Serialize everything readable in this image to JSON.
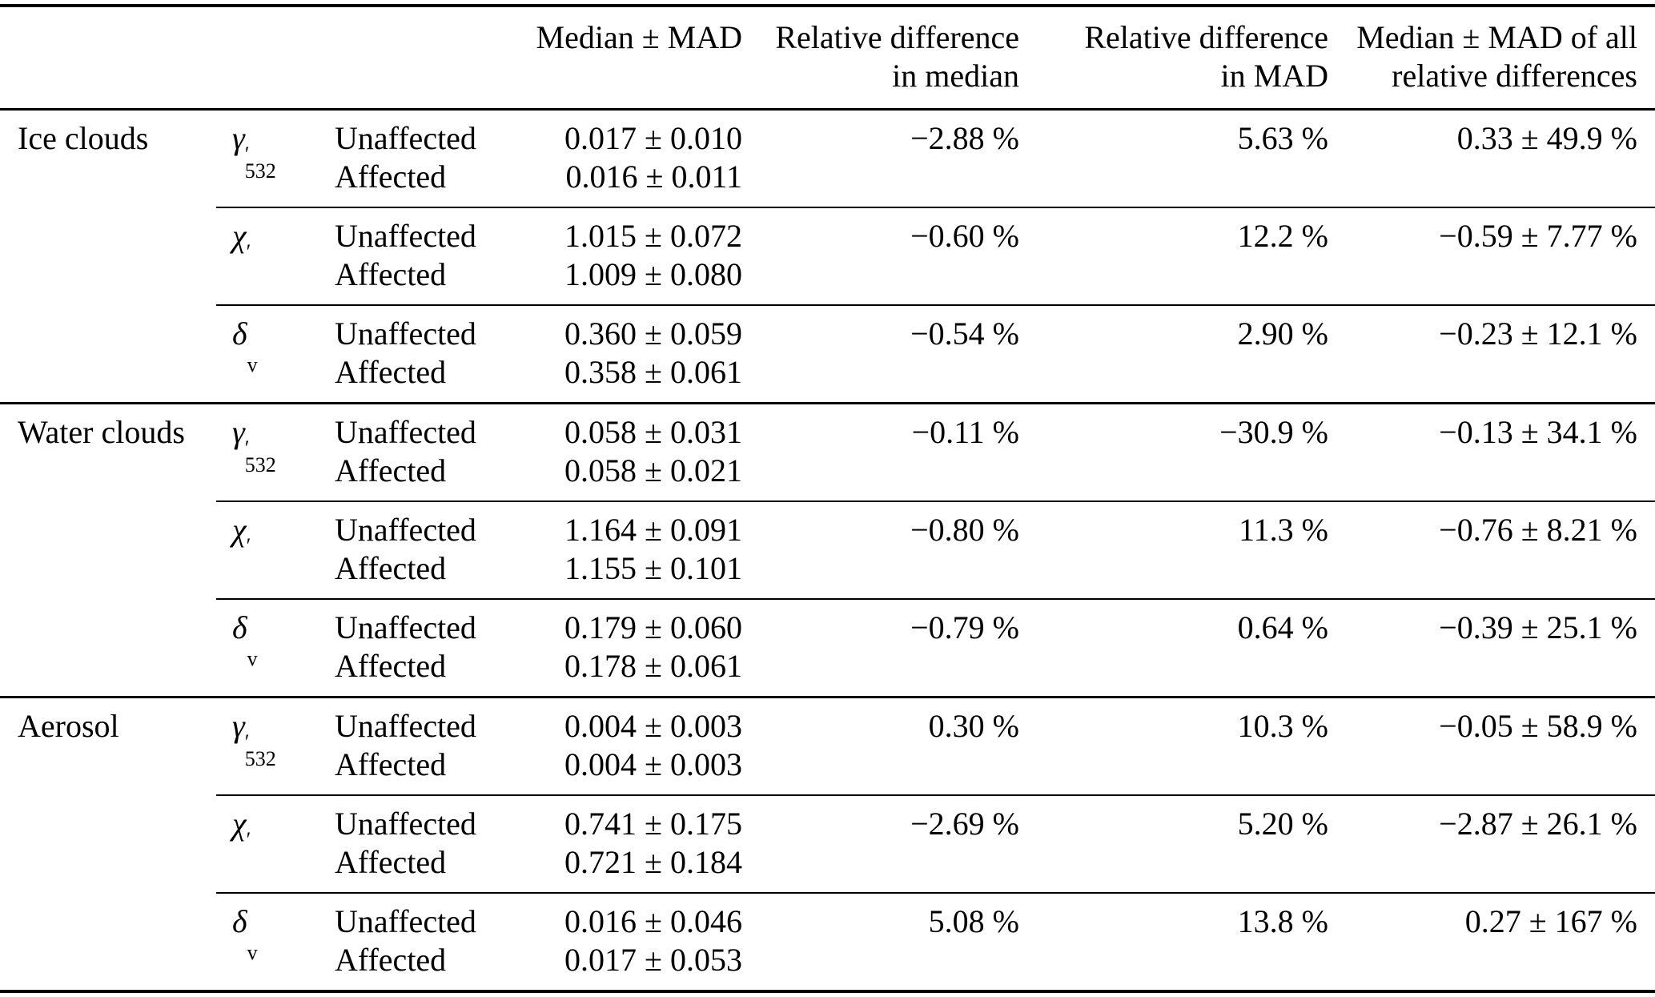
{
  "table": {
    "headers": {
      "median_mad": "Median ± MAD",
      "rel_diff_median": [
        "Relative difference",
        "in median"
      ],
      "rel_diff_mad": [
        "Relative difference",
        "in MAD"
      ],
      "median_mad_all": [
        "Median ± MAD of all",
        "relative differences"
      ]
    },
    "row_labels": {
      "unaffected": "Unaffected",
      "affected": "Affected"
    },
    "groups": [
      {
        "name": "Ice clouds",
        "blocks": [
          {
            "symbol": {
              "base": "γ",
              "prime": "′",
              "sub": "532"
            },
            "unaffected_value": "0.017 ± 0.010",
            "affected_value": "0.016 ± 0.011",
            "rel_diff_median": "−2.88 %",
            "rel_diff_mad": "5.63 %",
            "median_mad_all": "0.33 ± 49.9 %"
          },
          {
            "symbol": {
              "base": "χ",
              "prime": "′",
              "sub": ""
            },
            "unaffected_value": "1.015 ± 0.072",
            "affected_value": "1.009 ± 0.080",
            "rel_diff_median": "−0.60 %",
            "rel_diff_mad": "12.2 %",
            "median_mad_all": "−0.59 ± 7.77 %"
          },
          {
            "symbol": {
              "base": "δ",
              "prime": "",
              "sub": "v"
            },
            "unaffected_value": "0.360 ± 0.059",
            "affected_value": "0.358 ± 0.061",
            "rel_diff_median": "−0.54 %",
            "rel_diff_mad": "2.90 %",
            "median_mad_all": "−0.23 ± 12.1 %"
          }
        ]
      },
      {
        "name": "Water clouds",
        "blocks": [
          {
            "symbol": {
              "base": "γ",
              "prime": "′",
              "sub": "532"
            },
            "unaffected_value": "0.058 ± 0.031",
            "affected_value": "0.058 ± 0.021",
            "rel_diff_median": "−0.11 %",
            "rel_diff_mad": "−30.9 %",
            "median_mad_all": "−0.13 ± 34.1 %"
          },
          {
            "symbol": {
              "base": "χ",
              "prime": "′",
              "sub": ""
            },
            "unaffected_value": "1.164 ± 0.091",
            "affected_value": "1.155 ± 0.101",
            "rel_diff_median": "−0.80 %",
            "rel_diff_mad": "11.3 %",
            "median_mad_all": "−0.76 ± 8.21 %"
          },
          {
            "symbol": {
              "base": "δ",
              "prime": "",
              "sub": "v"
            },
            "unaffected_value": "0.179 ± 0.060",
            "affected_value": "0.178 ± 0.061",
            "rel_diff_median": "−0.79 %",
            "rel_diff_mad": "0.64 %",
            "median_mad_all": "−0.39 ± 25.1 %"
          }
        ]
      },
      {
        "name": "Aerosol",
        "blocks": [
          {
            "symbol": {
              "base": "γ",
              "prime": "′",
              "sub": "532"
            },
            "unaffected_value": "0.004 ± 0.003",
            "affected_value": "0.004 ± 0.003",
            "rel_diff_median": "0.30 %",
            "rel_diff_mad": "10.3 %",
            "median_mad_all": "−0.05 ± 58.9 %"
          },
          {
            "symbol": {
              "base": "χ",
              "prime": "′",
              "sub": ""
            },
            "unaffected_value": "0.741 ± 0.175",
            "affected_value": "0.721 ± 0.184",
            "rel_diff_median": "−2.69 %",
            "rel_diff_mad": "5.20 %",
            "median_mad_all": "−2.87 ± 26.1 %"
          },
          {
            "symbol": {
              "base": "δ",
              "prime": "",
              "sub": "v"
            },
            "unaffected_value": "0.016 ± 0.046",
            "affected_value": "0.017 ± 0.053",
            "rel_diff_median": "5.08 %",
            "rel_diff_mad": "13.8 %",
            "median_mad_all": "0.27 ± 167 %"
          }
        ]
      }
    ]
  }
}
